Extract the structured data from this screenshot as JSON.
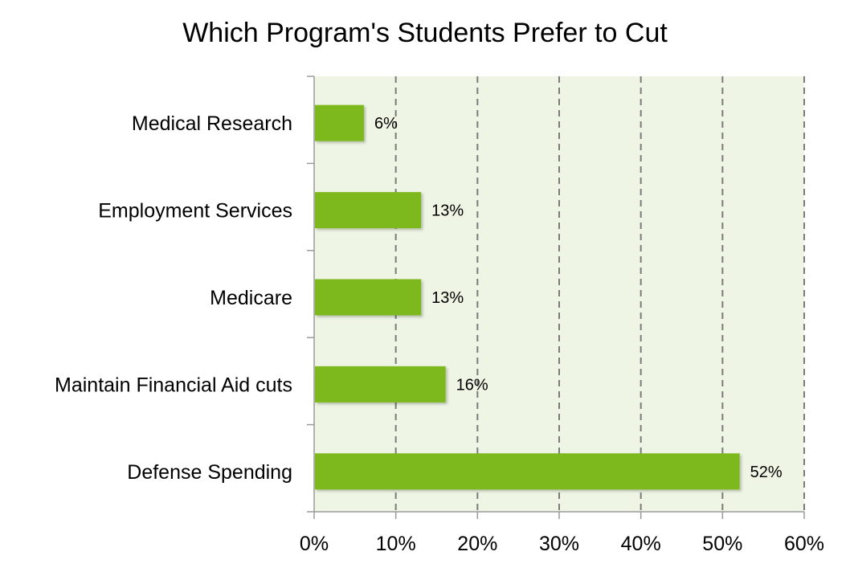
{
  "chart_data": {
    "type": "bar",
    "orientation": "horizontal",
    "title": "Which Program's Students Prefer to Cut",
    "categories": [
      "Medical Research",
      "Employment Services",
      "Medicare ",
      "Maintain Financial Aid cuts",
      "Defense Spending"
    ],
    "values": [
      6,
      13,
      13,
      16,
      52
    ],
    "data_labels": [
      "6%",
      "13%",
      "13%",
      "16%",
      "52%"
    ],
    "xlabel": "",
    "ylabel": "",
    "xlim": [
      0,
      60
    ],
    "xticks": [
      0,
      10,
      20,
      30,
      40,
      50,
      60
    ],
    "xtick_labels": [
      "0%",
      "10%",
      "20%",
      "30%",
      "40%",
      "50%",
      "60%"
    ],
    "grid": "vertical dashed",
    "colors": {
      "bar": "#7db81a",
      "plot_bg": "#eef5e4",
      "grid": "#7a7a7a",
      "axis": "#9a9a9a"
    }
  }
}
